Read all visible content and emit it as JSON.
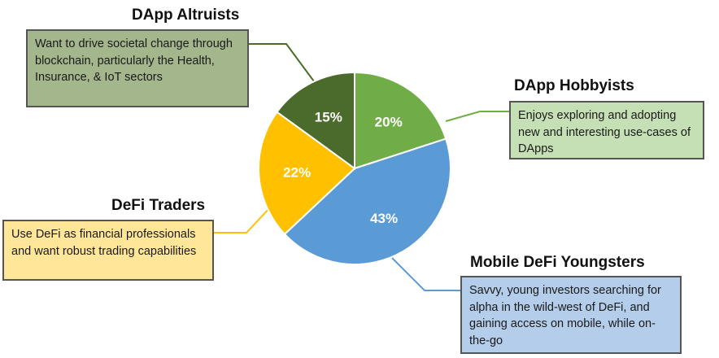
{
  "chart_data": {
    "type": "pie",
    "slices": [
      {
        "label": "DApp Hobbyists",
        "value": 20,
        "value_label": "20%",
        "color": "#70AD47"
      },
      {
        "label": "Mobile DeFi Youngsters",
        "value": 43,
        "value_label": "43%",
        "color": "#5B9BD5"
      },
      {
        "label": "DeFi Traders",
        "value": 22,
        "value_label": "22%",
        "color": "#FFC000"
      },
      {
        "label": "DApp Altruists",
        "value": 15,
        "value_label": "15%",
        "color": "#4A6B2C"
      }
    ],
    "start_angle_deg": 0,
    "direction": "clockwise"
  },
  "segments": {
    "altruists": {
      "title": "DApp Altruists",
      "description": "Want to drive societal change through blockchain, particularly the Health, Insurance, & IoT sectors",
      "box_color": "#A3B68C",
      "line_color": "#4A6B2C"
    },
    "hobbyists": {
      "title": "DApp Hobbyists",
      "description": "Enjoys exploring and adopting new and interesting use-cases of DApps",
      "box_color": "#C5E0B4",
      "line_color": "#70AD47"
    },
    "traders": {
      "title": "DeFi Traders",
      "description": "Use DeFi as financial professionals and want robust trading capabilities",
      "box_color": "#FFE699",
      "line_color": "#FFC000"
    },
    "youngsters": {
      "title": "Mobile DeFi Youngsters",
      "description": "Savvy, young investors searching for alpha in the wild-west of DeFi, and gaining access on mobile, while on-the-go",
      "box_color": "#B4CDEA",
      "line_color": "#5B9BD5"
    }
  }
}
